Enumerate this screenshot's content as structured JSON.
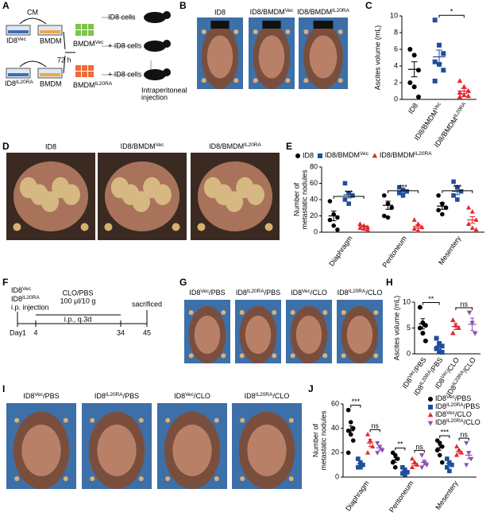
{
  "panels": {
    "A": {
      "label": "A",
      "cm": "CM",
      "id8vec": {
        "text": "ID8",
        "sup": "Vec"
      },
      "bmdm1": "BMDM",
      "time": "72 h",
      "bmdmvec": {
        "text": "BMDM",
        "sup": "Vec"
      },
      "id8il": {
        "text": "ID8",
        "sup": "IL20RA"
      },
      "bmdm2": "BMDM",
      "bmdmil": {
        "text": "BMDM",
        "sup": "IL20RA"
      },
      "cells1": "ID8 cells",
      "cells2": "+ ID8 cells",
      "cells3": "+ ID8 cells",
      "injection": [
        "Intraperitoneal",
        "injection"
      ]
    },
    "B": {
      "label": "B",
      "photos": [
        "ID8",
        {
          "text": "ID8/BMDM",
          "sup": "Vec"
        },
        {
          "text": "ID8/BMDM",
          "sup": "IL20RA"
        }
      ]
    },
    "D": {
      "label": "D",
      "photos": [
        "ID8",
        {
          "text": "ID8/BMDM",
          "sup": "Vec"
        },
        {
          "text": "ID8/BMDM",
          "sup": "IL20RA"
        }
      ]
    },
    "F": {
      "label": "F",
      "cells": [
        {
          "text": "ID8",
          "sup": "Vec"
        },
        {
          "text": "ID8",
          "sup": "IL20RA"
        }
      ],
      "injection": "i.p. injection",
      "treatment": [
        "CLO/PBS",
        "100 μl/10 g"
      ],
      "route": "i.p., q.3d",
      "end": "sacrificed",
      "days": [
        "Day1",
        "4",
        "34",
        "45"
      ]
    },
    "G": {
      "label": "G",
      "photos": [
        {
          "text": "ID8",
          "sup": "Vec",
          "tail": "/PBS"
        },
        {
          "text": "ID8",
          "sup": "IL20RA",
          "tail": "/PBS"
        },
        {
          "text": "ID8",
          "sup": "Vec",
          "tail": "/CLO"
        },
        {
          "text": "ID8",
          "sup": "IL20RA",
          "tail": "/CLO"
        }
      ]
    },
    "I": {
      "label": "I",
      "photos": [
        {
          "text": "ID8",
          "sup": "Vec",
          "tail": "/PBS"
        },
        {
          "text": "ID8",
          "sup": "IL20RA",
          "tail": "/PBS"
        },
        {
          "text": "ID8",
          "sup": "Vec",
          "tail": "/CLO"
        },
        {
          "text": "ID8",
          "sup": "IL20RA",
          "tail": "/CLO"
        }
      ]
    }
  },
  "chart_data": [
    {
      "panel": "C",
      "type": "dot",
      "ylabel": "Ascites volume (mL)",
      "ylim": [
        0,
        10
      ],
      "yticks": [
        0,
        2,
        4,
        6,
        8,
        10
      ],
      "groups": [
        {
          "label": "ID8",
          "color": "#000000",
          "marker": "circle",
          "values": [
            6,
            5.3,
            3.5,
            2,
            1.5,
            0.3
          ],
          "mean": 3.6,
          "error": 0.9
        },
        {
          "label": {
            "text": "ID8/BMDM",
            "sup": "Vec"
          },
          "color": "#1f4e9c",
          "marker": "square",
          "values": [
            9.5,
            6.5,
            5.5,
            4.5,
            4.2,
            3.5,
            2.2
          ],
          "mean": 5.1,
          "error": 0.8
        },
        {
          "label": {
            "text": "ID8/BMDM",
            "sup": "IL20RA"
          },
          "color": "#e8262b",
          "marker": "triangle",
          "values": [
            2.2,
            1.5,
            1,
            0.8,
            0.5,
            0.4,
            0.3
          ],
          "mean": 1,
          "error": 0.3
        }
      ],
      "significance": [
        {
          "groups": [
            1,
            2
          ],
          "label": "*"
        }
      ]
    },
    {
      "panel": "E",
      "type": "grouped-dot",
      "ylabel": [
        "Number of",
        "metastatic nodules"
      ],
      "ylim": [
        0,
        80
      ],
      "yticks": [
        0,
        20,
        40,
        60,
        80
      ],
      "legend": "top",
      "categories": [
        "Diaphragm",
        "Peritoneum",
        "Mesentery"
      ],
      "series": [
        {
          "name": "ID8",
          "color": "#000000",
          "marker": "circle",
          "values": [
            [
              38,
              22,
              18,
              15,
              8,
              3
            ],
            [
              45,
              35,
              30,
              20,
              18
            ],
            [
              45,
              35,
              30,
              27,
              22
            ]
          ],
          "means": [
            20,
            33,
            32
          ],
          "errors": [
            6,
            5,
            4
          ]
        },
        {
          "name": {
            "text": "ID8/BMDM",
            "sup": "Vec"
          },
          "color": "#1f4e9c",
          "marker": "square",
          "values": [
            [
              60,
              48,
              45,
              40,
              35
            ],
            [
              55,
              52,
              50,
              48,
              45
            ],
            [
              62,
              55,
              50,
              45,
              40
            ]
          ],
          "means": [
            46,
            50,
            50
          ],
          "errors": [
            4,
            2,
            4
          ]
        },
        {
          "name": {
            "text": "ID8/BMDM",
            "sup": "IL20RA"
          },
          "color": "#e8262b",
          "marker": "triangle",
          "values": [
            [
              10,
              8,
              6,
              5,
              4,
              3
            ],
            [
              15,
              10,
              6,
              4,
              2
            ],
            [
              30,
              25,
              15,
              10,
              5,
              3
            ]
          ],
          "means": [
            7,
            7,
            15
          ],
          "errors": [
            1,
            2,
            4
          ]
        }
      ],
      "significance": [
        {
          "category": 0,
          "series": [
            0,
            2
          ],
          "label": "***"
        },
        {
          "category": 1,
          "series": [
            0,
            2
          ],
          "label": "***"
        },
        {
          "category": 2,
          "series": [
            0,
            2
          ],
          "label": "***"
        }
      ]
    },
    {
      "panel": "H",
      "type": "dot",
      "ylabel": "Ascites volume (mL)",
      "ylim": [
        0,
        10
      ],
      "yticks": [
        0,
        5,
        10
      ],
      "groups": [
        {
          "label": {
            "text": "ID8",
            "sup": "Vec",
            "tail": "/PBS"
          },
          "color": "#000000",
          "marker": "circle",
          "values": [
            9,
            6,
            5.5,
            5,
            4,
            2.5
          ],
          "mean": 5.8,
          "error": 1
        },
        {
          "label": {
            "text": "ID8",
            "sup": "IL20RA",
            "tail": "/PBS"
          },
          "color": "#1f4e9c",
          "marker": "square",
          "values": [
            3,
            2,
            1.5,
            1,
            0.5,
            0.3
          ],
          "mean": 1.5,
          "error": 0.4
        },
        {
          "label": {
            "text": "ID8",
            "sup": "Vec",
            "tail": "/CLO"
          },
          "color": "#e8262b",
          "marker": "triangle",
          "values": [
            6.5,
            5.5,
            5,
            4
          ],
          "mean": 5.3,
          "error": 0.6
        },
        {
          "label": {
            "text": "ID8",
            "sup": "IL20RA",
            "tail": "/CLO"
          },
          "color": "#8a4fb0",
          "marker": "triangle-down",
          "values": [
            8,
            6,
            4
          ],
          "mean": 5.7,
          "error": 1.2
        }
      ],
      "significance": [
        {
          "groups": [
            0,
            1
          ],
          "label": "**"
        },
        {
          "groups": [
            2,
            3
          ],
          "label": "ns"
        }
      ]
    },
    {
      "panel": "J",
      "type": "grouped-dot",
      "ylabel": [
        "Number of",
        "metastatic nodules"
      ],
      "ylim": [
        0,
        60
      ],
      "yticks": [
        0,
        20,
        40,
        60
      ],
      "legend": "top-right",
      "categories": [
        "Diaphragm",
        "Peritoneum",
        "Mesentery"
      ],
      "series": [
        {
          "name": {
            "text": "ID8",
            "sup": "Vec",
            "tail": "/PBS"
          },
          "color": "#000000",
          "marker": "circle",
          "values": [
            [
              55,
              45,
              40,
              38,
              35,
              30,
              20
            ],
            [
              20,
              18,
              15,
              12,
              8
            ],
            [
              30,
              28,
              25,
              22,
              18,
              12
            ]
          ],
          "means": [
            38,
            14,
            24
          ],
          "errors": [
            4,
            2,
            2
          ]
        },
        {
          "name": {
            "text": "ID8",
            "sup": "IL20RA",
            "tail": "/PBS"
          },
          "color": "#1f4e9c",
          "marker": "square",
          "values": [
            [
              15,
              12,
              10,
              8,
              8
            ],
            [
              8,
              6,
              4,
              3,
              2
            ],
            [
              15,
              12,
              10,
              8,
              5
            ]
          ],
          "means": [
            11,
            5,
            11
          ],
          "errors": [
            1,
            1,
            1
          ]
        },
        {
          "name": {
            "text": "ID8",
            "sup": "Vec",
            "tail": "/CLO"
          },
          "color": "#e8262b",
          "marker": "triangle",
          "values": [
            [
              35,
              30,
              25,
              20
            ],
            [
              15,
              12,
              10,
              8
            ],
            [
              25,
              22,
              20,
              18
            ]
          ],
          "means": [
            28,
            11,
            21
          ],
          "errors": [
            3,
            1.5,
            1.5
          ]
        },
        {
          "name": {
            "text": "ID8",
            "sup": "IL20RA",
            "tail": "/CLO"
          },
          "color": "#8a4fb0",
          "marker": "triangle-down",
          "values": [
            [
              28,
              25,
              22,
              20
            ],
            [
              18,
              12,
              10,
              8
            ],
            [
              28,
              20,
              15,
              10
            ]
          ],
          "means": [
            24,
            12,
            18
          ],
          "errors": [
            2,
            2,
            3
          ]
        }
      ],
      "significance": [
        {
          "category": 0,
          "series": [
            0,
            1
          ],
          "label": "***"
        },
        {
          "category": 0,
          "series": [
            2,
            3
          ],
          "label": "ns"
        },
        {
          "category": 1,
          "series": [
            0,
            1
          ],
          "label": "**"
        },
        {
          "category": 1,
          "series": [
            2,
            3
          ],
          "label": "ns"
        },
        {
          "category": 2,
          "series": [
            0,
            1
          ],
          "label": "***"
        },
        {
          "category": 2,
          "series": [
            2,
            3
          ],
          "label": "ns"
        }
      ]
    }
  ]
}
